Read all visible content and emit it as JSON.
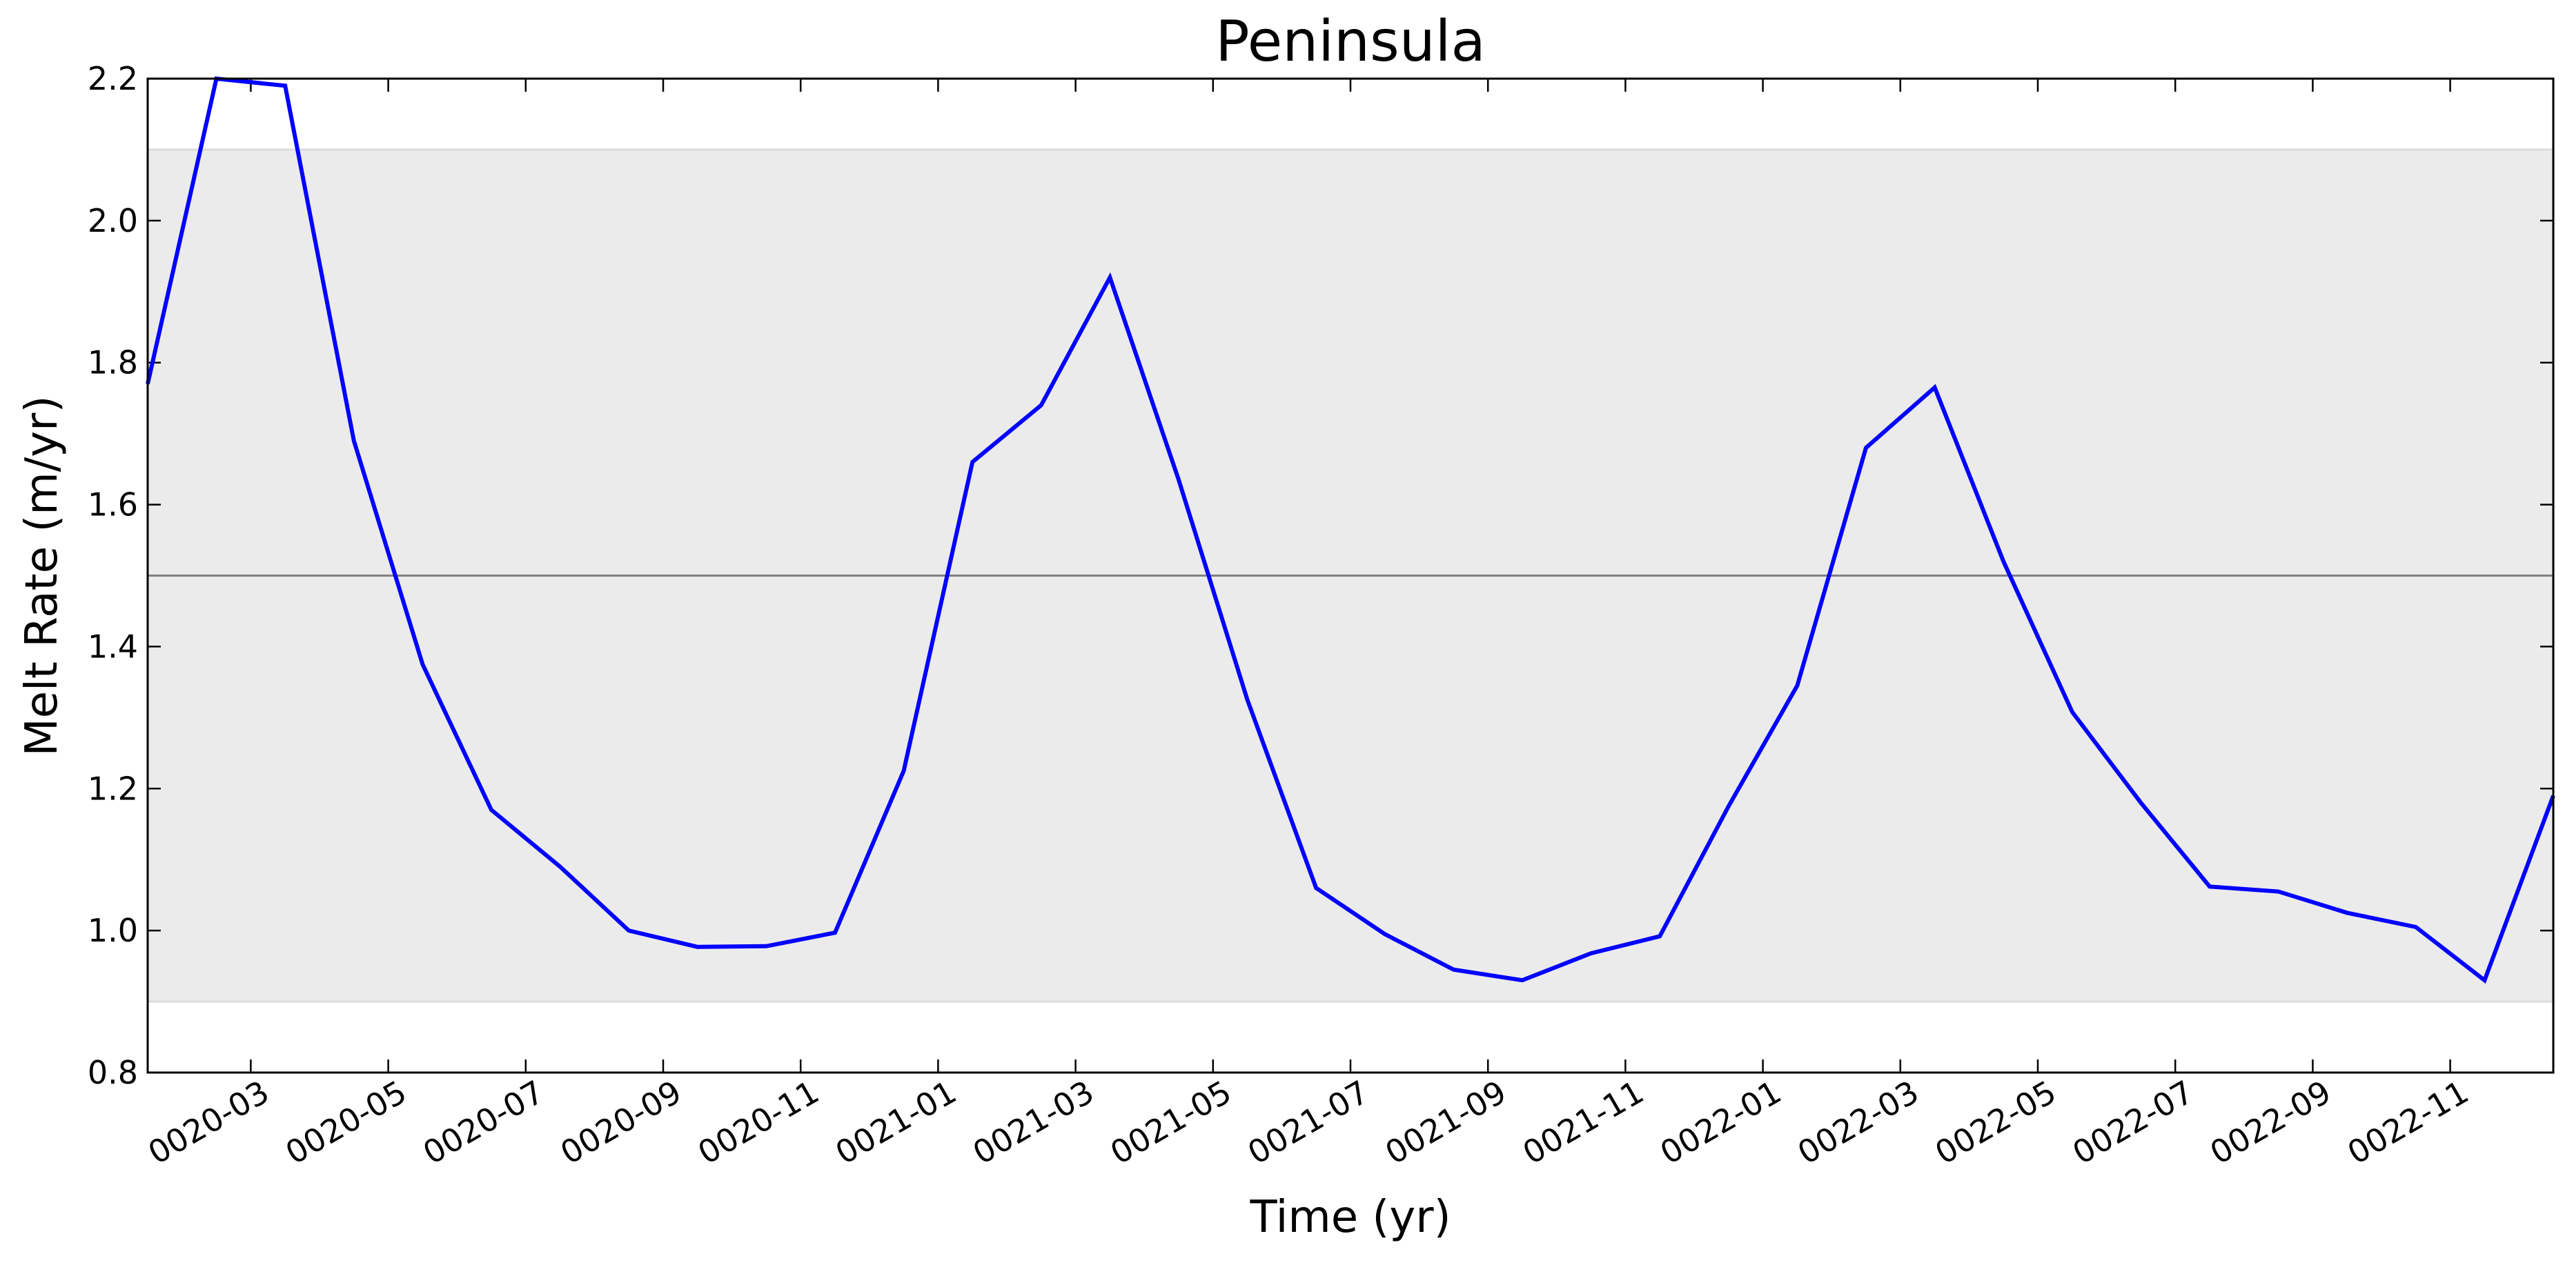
{
  "chart_data": {
    "type": "line",
    "title": "Peninsula",
    "xlabel": "Time (yr)",
    "ylabel": "Melt Rate (m/yr)",
    "x": [
      "0020-01",
      "0020-02",
      "0020-03",
      "0020-04",
      "0020-05",
      "0020-06",
      "0020-07",
      "0020-08",
      "0020-09",
      "0020-10",
      "0020-11",
      "0020-12",
      "0021-01",
      "0021-02",
      "0021-03",
      "0021-04",
      "0021-05",
      "0021-06",
      "0021-07",
      "0021-08",
      "0021-09",
      "0021-10",
      "0021-11",
      "0021-12",
      "0022-01",
      "0022-02",
      "0022-03",
      "0022-04",
      "0022-05",
      "0022-06",
      "0022-07",
      "0022-08",
      "0022-09",
      "0022-10",
      "0022-11",
      "0022-12"
    ],
    "values": [
      1.77,
      2.2,
      2.19,
      1.69,
      1.375,
      1.17,
      1.09,
      1.0,
      0.977,
      0.978,
      0.997,
      1.225,
      1.66,
      1.74,
      1.92,
      1.635,
      1.325,
      1.06,
      0.995,
      0.945,
      0.93,
      0.968,
      0.992,
      1.175,
      1.345,
      1.68,
      1.765,
      1.52,
      1.308,
      1.18,
      1.062,
      1.055,
      1.025,
      1.005,
      0.93,
      1.19
    ],
    "color": "#0000ff",
    "xlim": [
      "0020-01",
      "0022-12"
    ],
    "xticks": [
      "0020-03",
      "0020-05",
      "0020-07",
      "0020-09",
      "0020-11",
      "0021-01",
      "0021-03",
      "0021-05",
      "0021-07",
      "0021-09",
      "0021-11",
      "0022-01",
      "0022-03",
      "0022-05",
      "0022-07",
      "0022-09",
      "0022-11"
    ],
    "ylim": [
      0.8,
      2.2
    ],
    "yticks": [
      0.8,
      {
        "value": 1,
        "label": "1.0"
      },
      1.2,
      1.4,
      1.6,
      1.8,
      {
        "value": 2,
        "label": "2.0"
      },
      2.2
    ],
    "band": [
      0.9,
      2.1
    ],
    "band_color": "#ebebeb",
    "hline": 1.5,
    "hline_color": "#808080"
  }
}
